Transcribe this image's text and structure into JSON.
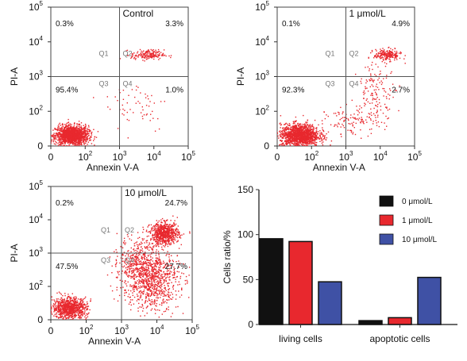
{
  "flow_panels": [
    {
      "title": "Control",
      "xlabel": "Annexin V-A",
      "ylabel": "PI-A",
      "x_ticks": [
        {
          "base": "0",
          "exp": ""
        },
        {
          "base": "10",
          "exp": "2"
        },
        {
          "base": "10",
          "exp": "3"
        },
        {
          "base": "10",
          "exp": "4"
        },
        {
          "base": "10",
          "exp": "5"
        }
      ],
      "y_ticks": [
        {
          "base": "0",
          "exp": ""
        },
        {
          "base": "10",
          "exp": "2"
        },
        {
          "base": "10",
          "exp": "3"
        },
        {
          "base": "10",
          "exp": "4"
        },
        {
          "base": "10",
          "exp": "5"
        }
      ],
      "quadrants": {
        "Q1": "0.3%",
        "Q2": "3.3%",
        "Q3": "95.4%",
        "Q4": "1.0%"
      },
      "quadrant_labels": [
        "Q1",
        "Q2",
        "Q3",
        "Q4"
      ]
    },
    {
      "title": "1 μmol/L",
      "xlabel": "Annexin V-A",
      "ylabel": "PI-A",
      "x_ticks": [
        {
          "base": "0",
          "exp": ""
        },
        {
          "base": "10",
          "exp": "2"
        },
        {
          "base": "10",
          "exp": "3"
        },
        {
          "base": "10",
          "exp": "4"
        },
        {
          "base": "10",
          "exp": "5"
        }
      ],
      "y_ticks": [
        {
          "base": "0",
          "exp": ""
        },
        {
          "base": "10",
          "exp": "2"
        },
        {
          "base": "10",
          "exp": "3"
        },
        {
          "base": "10",
          "exp": "4"
        },
        {
          "base": "10",
          "exp": "5"
        }
      ],
      "quadrants": {
        "Q1": "0.1%",
        "Q2": "4.9%",
        "Q3": "92.3%",
        "Q4": "2.7%"
      },
      "quadrant_labels": [
        "Q1",
        "Q2",
        "Q3",
        "Q4"
      ]
    },
    {
      "title": "10 μmol/L",
      "xlabel": "Annexin V-A",
      "ylabel": "PI-A",
      "x_ticks": [
        {
          "base": "0",
          "exp": ""
        },
        {
          "base": "10",
          "exp": "2"
        },
        {
          "base": "10",
          "exp": "3"
        },
        {
          "base": "10",
          "exp": "4"
        },
        {
          "base": "10",
          "exp": "5"
        }
      ],
      "y_ticks": [
        {
          "base": "0",
          "exp": ""
        },
        {
          "base": "10",
          "exp": "2"
        },
        {
          "base": "10",
          "exp": "3"
        },
        {
          "base": "10",
          "exp": "4"
        },
        {
          "base": "10",
          "exp": "5"
        }
      ],
      "quadrants": {
        "Q1": "0.2%",
        "Q2": "24.7%",
        "Q3": "47.5%",
        "Q4": "27.7%"
      },
      "quadrant_labels": [
        "Q1",
        "Q2",
        "Q3",
        "Q4"
      ]
    }
  ],
  "chart_data": [
    {
      "type": "scatter",
      "title": "Control",
      "xlabel": "Annexin V-A",
      "ylabel": "PI-A",
      "x_scale": "biexponential",
      "y_scale": "biexponential",
      "xlim": [
        0,
        100000
      ],
      "ylim": [
        0,
        100000
      ],
      "gates": {
        "x": 1000,
        "y": 1000
      },
      "quadrants": {
        "Q1": 0.3,
        "Q2": 3.3,
        "Q3": 95.4,
        "Q4": 1.0
      },
      "color": "#e8282e"
    },
    {
      "type": "scatter",
      "title": "1 μmol/L",
      "xlabel": "Annexin V-A",
      "ylabel": "PI-A",
      "x_scale": "biexponential",
      "y_scale": "biexponential",
      "xlim": [
        0,
        100000
      ],
      "ylim": [
        0,
        100000
      ],
      "gates": {
        "x": 1000,
        "y": 1000
      },
      "quadrants": {
        "Q1": 0.1,
        "Q2": 4.9,
        "Q3": 92.3,
        "Q4": 2.7
      },
      "color": "#e8282e"
    },
    {
      "type": "scatter",
      "title": "10 μmol/L",
      "xlabel": "Annexin V-A",
      "ylabel": "PI-A",
      "x_scale": "biexponential",
      "y_scale": "biexponential",
      "xlim": [
        0,
        100000
      ],
      "ylim": [
        0,
        100000
      ],
      "gates": {
        "x": 1000,
        "y": 1000
      },
      "quadrants": {
        "Q1": 0.2,
        "Q2": 24.7,
        "Q3": 47.5,
        "Q4": 27.7
      },
      "color": "#e8282e"
    },
    {
      "type": "bar",
      "categories": [
        "living cells",
        "apoptotic cells"
      ],
      "ylabel": "Cells ratio/%",
      "ylim": [
        0,
        150
      ],
      "yticks": [
        0,
        50,
        100,
        150
      ],
      "legend_position": "top-right",
      "series": [
        {
          "name": "0 μmol/L",
          "color": "#111111",
          "values": [
            95.4,
            4.3
          ]
        },
        {
          "name": "1 μmol/L",
          "color": "#e8282e",
          "values": [
            92.3,
            7.6
          ]
        },
        {
          "name": "10 μmol/L",
          "color": "#3f51a5",
          "values": [
            47.5,
            52.4
          ]
        }
      ]
    }
  ]
}
